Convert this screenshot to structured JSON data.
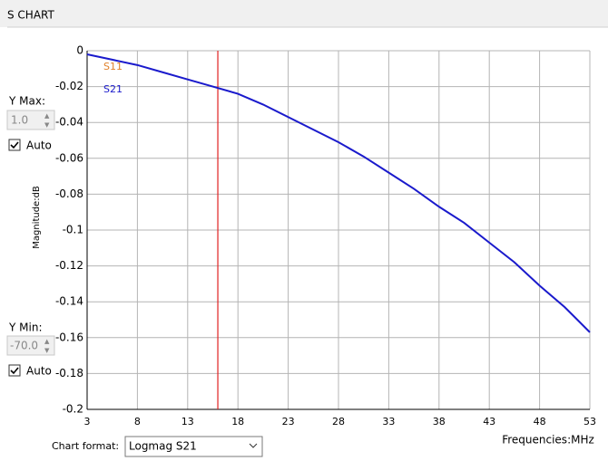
{
  "panel": {
    "title": "S CHART"
  },
  "controls": {
    "y_max_label": "Y Max:",
    "y_max_value": "1.0",
    "y_max_auto": "Auto",
    "y_min_label": "Y Min:",
    "y_min_value": "-70.0",
    "y_min_auto": "Auto",
    "chart_format_label": "Chart format:",
    "chart_format_value": "Logmag S21"
  },
  "chart_data": {
    "type": "line",
    "y_label": "Magnitude:dB",
    "x_label": "Frequencies:MHz",
    "x": [
      3,
      5.5,
      8,
      10.5,
      13,
      15.5,
      18,
      20.5,
      23,
      25.5,
      28,
      30.5,
      33,
      35.5,
      38,
      40.5,
      43,
      45.5,
      48,
      50.5,
      53
    ],
    "series": [
      {
        "name": "S11",
        "color": "#e0802a",
        "values": [
          null,
          null,
          null,
          null,
          null,
          null,
          null,
          null,
          null,
          null,
          null,
          null,
          null,
          null,
          null,
          null,
          null,
          null,
          null,
          null,
          null
        ]
      },
      {
        "name": "S21",
        "color": "#1a1acc",
        "values": [
          -0.002,
          -0.005,
          -0.008,
          -0.012,
          -0.016,
          -0.02,
          -0.024,
          -0.03,
          -0.037,
          -0.044,
          -0.051,
          -0.059,
          -0.068,
          -0.077,
          -0.087,
          -0.096,
          -0.107,
          -0.118,
          -0.131,
          -0.143,
          -0.157
        ]
      }
    ],
    "xlim": [
      3,
      53
    ],
    "ylim": [
      -0.2,
      0
    ],
    "xticks": [
      3,
      8,
      13,
      18,
      23,
      28,
      33,
      38,
      43,
      48,
      53
    ],
    "yticks": [
      0,
      -0.02,
      -0.04,
      -0.06,
      -0.08,
      -0.1,
      -0.12,
      -0.14,
      -0.16,
      -0.18,
      -0.2
    ],
    "grid": true,
    "marker_x": 16,
    "marker_color": "#e02020"
  }
}
